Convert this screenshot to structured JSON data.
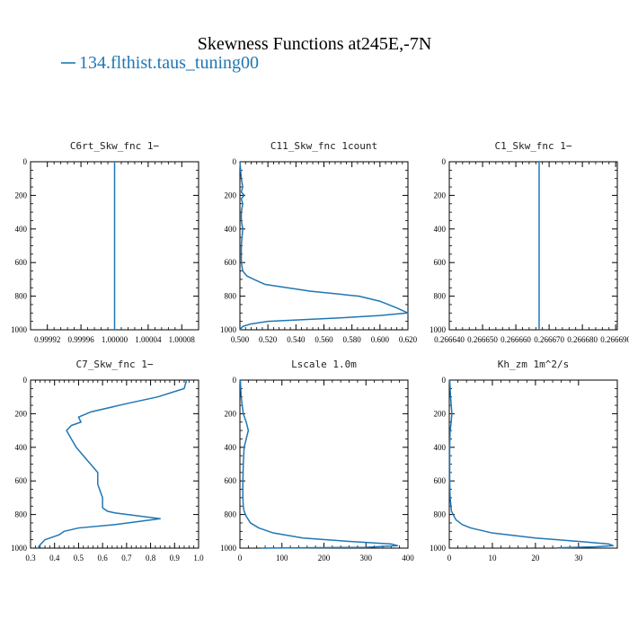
{
  "figure": {
    "title": "Skewness Functions at245E,-7N",
    "legend_label": "134.flthist.taus_tuning00",
    "series_color": "#1f77b4"
  },
  "chart_data": [
    {
      "type": "line",
      "title": "C6rt_Skw_fnc   1−",
      "xlim": [
        0.9999,
        1.0001
      ],
      "ylim": [
        1000,
        0
      ],
      "xticks": [
        0.99992,
        0.99996,
        1.0,
        1.00004,
        1.00008
      ],
      "xtick_labels": [
        "0.99992",
        "0.99996",
        "1.00000",
        "1.00004",
        "1.00008"
      ],
      "yticks": [
        0,
        200,
        400,
        600,
        800,
        1000
      ],
      "series": [
        {
          "x": [
            1.0,
            1.0
          ],
          "y": [
            0,
            1000
          ]
        }
      ]
    },
    {
      "type": "line",
      "title": "C11_Skw_fnc   1count",
      "xlim": [
        0.5,
        0.62
      ],
      "ylim": [
        1000,
        0
      ],
      "xticks": [
        0.5,
        0.52,
        0.54,
        0.56,
        0.58,
        0.6,
        0.62
      ],
      "xtick_labels": [
        "0.500",
        "0.520",
        "0.540",
        "0.560",
        "0.580",
        "0.600",
        "0.620"
      ],
      "yticks": [
        0,
        200,
        400,
        600,
        800,
        1000
      ],
      "series": [
        {
          "x": [
            0.5,
            0.501,
            0.502,
            0.501,
            0.503,
            0.501,
            0.502,
            0.501,
            0.501,
            0.502,
            0.501,
            0.501,
            0.502,
            0.505,
            0.51,
            0.518,
            0.55,
            0.585,
            0.6,
            0.612,
            0.62,
            0.6,
            0.57,
            0.52,
            0.508,
            0.502,
            0.5
          ],
          "y": [
            0,
            100,
            150,
            180,
            200,
            220,
            250,
            300,
            350,
            400,
            500,
            600,
            650,
            680,
            700,
            730,
            770,
            800,
            830,
            870,
            900,
            915,
            930,
            950,
            965,
            980,
            1000
          ]
        }
      ]
    },
    {
      "type": "line",
      "title": "C1_Skw_fnc   1−",
      "xlim": [
        0.26664,
        0.2666905
      ],
      "ylim": [
        1000,
        0
      ],
      "xticks": [
        0.26664,
        0.26665,
        0.26666,
        0.26667,
        0.26668,
        0.26669
      ],
      "xtick_labels": [
        "0.266640",
        "0.266650",
        "0.266660",
        "0.266670",
        "0.266680",
        "0.266690"
      ],
      "yticks": [
        0,
        200,
        400,
        600,
        800,
        1000
      ],
      "series": [
        {
          "x": [
            0.266667,
            0.266667
          ],
          "y": [
            0,
            1000
          ]
        }
      ]
    },
    {
      "type": "line",
      "title": "C7_Skw_fnc   1−",
      "xlim": [
        0.3,
        1.0
      ],
      "ylim": [
        1000,
        0
      ],
      "xticks": [
        0.3,
        0.4,
        0.5,
        0.6,
        0.7,
        0.8,
        0.9,
        1.0
      ],
      "xtick_labels": [
        "0.3",
        "0.4",
        "0.5",
        "0.6",
        "0.7",
        "0.8",
        "0.9",
        "1.0"
      ],
      "yticks": [
        0,
        200,
        400,
        600,
        800,
        1000
      ],
      "series": [
        {
          "x": [
            0.95,
            0.94,
            0.83,
            0.7,
            0.55,
            0.5,
            0.51,
            0.47,
            0.45,
            0.47,
            0.49,
            0.52,
            0.55,
            0.58,
            0.58,
            0.6,
            0.6,
            0.62,
            0.65,
            0.84,
            0.65,
            0.5,
            0.44,
            0.42,
            0.36,
            0.34,
            0.33
          ],
          "y": [
            0,
            50,
            100,
            140,
            190,
            220,
            250,
            270,
            300,
            350,
            400,
            450,
            500,
            550,
            620,
            700,
            760,
            780,
            790,
            825,
            860,
            880,
            900,
            920,
            950,
            980,
            1000
          ]
        }
      ]
    },
    {
      "type": "line",
      "title": "Lscale   1.0m",
      "xlim": [
        0,
        400
      ],
      "ylim": [
        1000,
        0
      ],
      "xticks": [
        0,
        100,
        200,
        300,
        400
      ],
      "xtick_labels": [
        "0",
        "100",
        "200",
        "300",
        "400"
      ],
      "yticks": [
        0,
        200,
        400,
        600,
        800,
        1000
      ],
      "series": [
        {
          "x": [
            1,
            3,
            8,
            15,
            20,
            15,
            10,
            8,
            7,
            7,
            8,
            10,
            15,
            25,
            45,
            80,
            150,
            260,
            360,
            375,
            300,
            50
          ],
          "y": [
            0,
            100,
            200,
            250,
            300,
            350,
            400,
            500,
            600,
            700,
            750,
            780,
            810,
            850,
            880,
            910,
            940,
            960,
            975,
            985,
            995,
            1000
          ]
        }
      ]
    },
    {
      "type": "line",
      "title": "Kh_zm   1m^2/s",
      "xlim": [
        0,
        39
      ],
      "ylim": [
        1000,
        0
      ],
      "xticks": [
        0,
        10,
        20,
        30
      ],
      "xtick_labels": [
        "0",
        "10",
        "20",
        "30"
      ],
      "yticks": [
        0,
        200,
        400,
        600,
        800,
        1000
      ],
      "series": [
        {
          "x": [
            0.1,
            0.3,
            0.6,
            0.4,
            0.2,
            0.1,
            0.1,
            0.1,
            0.2,
            0.5,
            1.5,
            3.0,
            5.0,
            10.0,
            20.0,
            30.0,
            37.0,
            38.0,
            34.0,
            25.0
          ],
          "y": [
            0,
            100,
            200,
            260,
            300,
            400,
            500,
            600,
            700,
            780,
            830,
            860,
            880,
            910,
            940,
            960,
            975,
            985,
            992,
            998
          ]
        }
      ]
    }
  ]
}
